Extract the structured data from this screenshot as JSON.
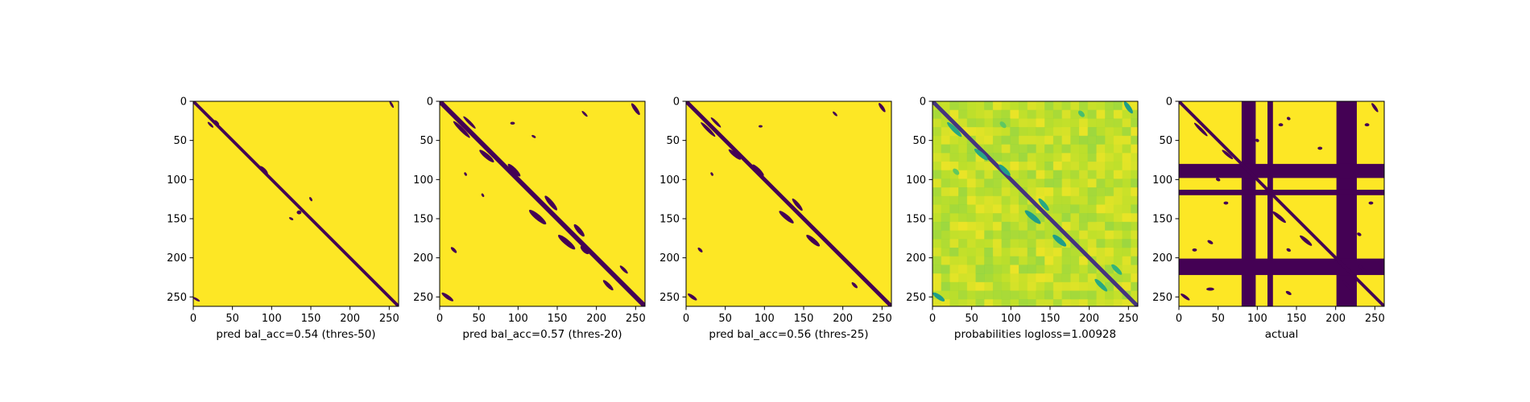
{
  "figure": {
    "background": "#ffffff"
  },
  "colors": {
    "low": "#440154",
    "high": "#fde725",
    "mid_green": "#35b779",
    "mid_teal": "#21918c"
  },
  "chart_data": [
    {
      "type": "heatmap",
      "title": "",
      "xlabel": "pred bal_acc=0.54 (thres-50)",
      "ylabel": "",
      "matrix_size": 262,
      "xlim": [
        0,
        262
      ],
      "ylim": [
        262,
        0
      ],
      "xticks": [
        0,
        50,
        100,
        150,
        200,
        250
      ],
      "yticks": [
        0,
        50,
        100,
        150,
        200,
        250
      ],
      "colormap": "viridis",
      "background_value": 1,
      "diagonal": {
        "value": 0,
        "halfwidth": 2
      },
      "blobs": [
        {
          "x": 22,
          "y": 30,
          "value": 0,
          "len": 10,
          "w": 1.6,
          "angle": -45
        },
        {
          "x": 30,
          "y": 27,
          "value": 0,
          "len": 8,
          "w": 1.5,
          "angle": -45
        },
        {
          "x": 90,
          "y": 88,
          "value": 0,
          "len": 14,
          "w": 2.5,
          "angle": -45
        },
        {
          "x": 135,
          "y": 142,
          "value": 0,
          "len": 6,
          "w": 2.5,
          "angle": 0
        },
        {
          "x": 150,
          "y": 125,
          "value": 0,
          "len": 6,
          "w": 1.5,
          "angle": -60
        },
        {
          "x": 125,
          "y": 150,
          "value": 0,
          "len": 6,
          "w": 1.5,
          "angle": -30
        },
        {
          "x": 4,
          "y": 253,
          "value": 0,
          "len": 10,
          "w": 1.5,
          "angle": -30
        },
        {
          "x": 253,
          "y": 4,
          "value": 0,
          "len": 10,
          "w": 1.5,
          "angle": -60
        }
      ],
      "bands": []
    },
    {
      "type": "heatmap",
      "title": "",
      "xlabel": "pred bal_acc=0.57 (thres-20)",
      "ylabel": "",
      "matrix_size": 262,
      "xlim": [
        0,
        262
      ],
      "ylim": [
        262,
        0
      ],
      "xticks": [
        0,
        50,
        100,
        150,
        200,
        250
      ],
      "yticks": [
        0,
        50,
        100,
        150,
        200,
        250
      ],
      "colormap": "viridis",
      "background_value": 1,
      "diagonal": {
        "value": 0,
        "halfwidth": 3
      },
      "blobs": [
        {
          "x": 28,
          "y": 36,
          "value": 0,
          "len": 30,
          "w": 2.5,
          "angle": -45
        },
        {
          "x": 38,
          "y": 27,
          "value": 0,
          "len": 22,
          "w": 2,
          "angle": -45
        },
        {
          "x": 60,
          "y": 70,
          "value": 0,
          "len": 24,
          "w": 3,
          "angle": -40
        },
        {
          "x": 95,
          "y": 88,
          "value": 0,
          "len": 22,
          "w": 3,
          "angle": -45
        },
        {
          "x": 125,
          "y": 148,
          "value": 0,
          "len": 28,
          "w": 3.5,
          "angle": -40
        },
        {
          "x": 142,
          "y": 130,
          "value": 0,
          "len": 24,
          "w": 3,
          "angle": -50
        },
        {
          "x": 162,
          "y": 180,
          "value": 0,
          "len": 28,
          "w": 3.5,
          "angle": -40
        },
        {
          "x": 178,
          "y": 165,
          "value": 0,
          "len": 20,
          "w": 3,
          "angle": -50
        },
        {
          "x": 185,
          "y": 190,
          "value": 0,
          "len": 14,
          "w": 3,
          "angle": -45
        },
        {
          "x": 93,
          "y": 28,
          "value": 0,
          "len": 6,
          "w": 1.8,
          "angle": 0
        },
        {
          "x": 120,
          "y": 45,
          "value": 0,
          "len": 6,
          "w": 1.5,
          "angle": -30
        },
        {
          "x": 185,
          "y": 16,
          "value": 0,
          "len": 10,
          "w": 1.5,
          "angle": -45
        },
        {
          "x": 33,
          "y": 93,
          "value": 0,
          "len": 5,
          "w": 1.5,
          "angle": -60
        },
        {
          "x": 55,
          "y": 120,
          "value": 0,
          "len": 5,
          "w": 1.5,
          "angle": -60
        },
        {
          "x": 18,
          "y": 190,
          "value": 0,
          "len": 10,
          "w": 2,
          "angle": -45
        },
        {
          "x": 10,
          "y": 250,
          "value": 0,
          "len": 18,
          "w": 2.5,
          "angle": -35
        },
        {
          "x": 250,
          "y": 10,
          "value": 0,
          "len": 18,
          "w": 2.5,
          "angle": -55
        },
        {
          "x": 215,
          "y": 235,
          "value": 0,
          "len": 18,
          "w": 2.5,
          "angle": -45
        },
        {
          "x": 235,
          "y": 215,
          "value": 0,
          "len": 14,
          "w": 2,
          "angle": -45
        }
      ],
      "bands": []
    },
    {
      "type": "heatmap",
      "title": "",
      "xlabel": "pred bal_acc=0.56 (thres-25)",
      "ylabel": "",
      "matrix_size": 262,
      "xlim": [
        0,
        262
      ],
      "ylim": [
        262,
        0
      ],
      "xticks": [
        0,
        50,
        100,
        150,
        200,
        250
      ],
      "yticks": [
        0,
        50,
        100,
        150,
        200,
        250
      ],
      "colormap": "viridis",
      "background_value": 1,
      "diagonal": {
        "value": 0,
        "halfwidth": 2.5
      },
      "blobs": [
        {
          "x": 28,
          "y": 36,
          "value": 0,
          "len": 26,
          "w": 2.2,
          "angle": -45
        },
        {
          "x": 38,
          "y": 27,
          "value": 0,
          "len": 18,
          "w": 1.8,
          "angle": -45
        },
        {
          "x": 62,
          "y": 68,
          "value": 0,
          "len": 20,
          "w": 2.5,
          "angle": -40
        },
        {
          "x": 92,
          "y": 88,
          "value": 0,
          "len": 20,
          "w": 2.5,
          "angle": -45
        },
        {
          "x": 128,
          "y": 148,
          "value": 0,
          "len": 24,
          "w": 3,
          "angle": -40
        },
        {
          "x": 142,
          "y": 132,
          "value": 0,
          "len": 20,
          "w": 2.5,
          "angle": -50
        },
        {
          "x": 162,
          "y": 178,
          "value": 0,
          "len": 22,
          "w": 3,
          "angle": -40
        },
        {
          "x": 95,
          "y": 32,
          "value": 0,
          "len": 5,
          "w": 1.5,
          "angle": 0
        },
        {
          "x": 190,
          "y": 16,
          "value": 0,
          "len": 8,
          "w": 1.5,
          "angle": -45
        },
        {
          "x": 33,
          "y": 93,
          "value": 0,
          "len": 5,
          "w": 1.5,
          "angle": -60
        },
        {
          "x": 18,
          "y": 190,
          "value": 0,
          "len": 8,
          "w": 1.8,
          "angle": -45
        },
        {
          "x": 8,
          "y": 250,
          "value": 0,
          "len": 14,
          "w": 2.2,
          "angle": -35
        },
        {
          "x": 250,
          "y": 8,
          "value": 0,
          "len": 14,
          "w": 2.2,
          "angle": -55
        },
        {
          "x": 215,
          "y": 235,
          "value": 0,
          "len": 10,
          "w": 2,
          "angle": -45
        }
      ],
      "bands": []
    },
    {
      "type": "heatmap",
      "title": "",
      "xlabel": "probabilities logloss=1.00928",
      "ylabel": "",
      "matrix_size": 262,
      "xlim": [
        0,
        262
      ],
      "ylim": [
        262,
        0
      ],
      "xticks": [
        0,
        50,
        100,
        150,
        200,
        250
      ],
      "yticks": [
        0,
        50,
        100,
        150,
        200,
        250
      ],
      "colormap": "viridis",
      "background_value": 0.93,
      "texture": "mottled",
      "diagonal": {
        "value": 0.15,
        "halfwidth": 2.5
      },
      "blobs": [
        {
          "x": 28,
          "y": 36,
          "value": 0.6,
          "len": 26,
          "w": 3,
          "angle": -45
        },
        {
          "x": 62,
          "y": 68,
          "value": 0.6,
          "len": 22,
          "w": 3,
          "angle": -40
        },
        {
          "x": 92,
          "y": 88,
          "value": 0.55,
          "len": 20,
          "w": 3,
          "angle": -45
        },
        {
          "x": 128,
          "y": 148,
          "value": 0.55,
          "len": 26,
          "w": 3.5,
          "angle": -40
        },
        {
          "x": 142,
          "y": 132,
          "value": 0.6,
          "len": 20,
          "w": 3,
          "angle": -50
        },
        {
          "x": 162,
          "y": 178,
          "value": 0.55,
          "len": 22,
          "w": 3.5,
          "angle": -40
        },
        {
          "x": 215,
          "y": 235,
          "value": 0.6,
          "len": 22,
          "w": 3,
          "angle": -45
        },
        {
          "x": 235,
          "y": 215,
          "value": 0.65,
          "len": 18,
          "w": 3,
          "angle": -45
        },
        {
          "x": 8,
          "y": 250,
          "value": 0.55,
          "len": 18,
          "w": 3,
          "angle": -35
        },
        {
          "x": 250,
          "y": 8,
          "value": 0.55,
          "len": 18,
          "w": 3,
          "angle": -55
        },
        {
          "x": 30,
          "y": 90,
          "value": 0.75,
          "len": 10,
          "w": 3,
          "angle": -45
        },
        {
          "x": 90,
          "y": 30,
          "value": 0.75,
          "len": 10,
          "w": 3,
          "angle": -45
        },
        {
          "x": 190,
          "y": 16,
          "value": 0.7,
          "len": 10,
          "w": 3,
          "angle": -45
        }
      ],
      "bands": []
    },
    {
      "type": "heatmap",
      "title": "",
      "xlabel": "actual",
      "ylabel": "",
      "matrix_size": 262,
      "xlim": [
        0,
        262
      ],
      "ylim": [
        262,
        0
      ],
      "xticks": [
        0,
        50,
        100,
        150,
        200,
        250
      ],
      "yticks": [
        0,
        50,
        100,
        150,
        200,
        250
      ],
      "colormap": "viridis",
      "background_value": 1,
      "diagonal": {
        "value": 0,
        "halfwidth": 2
      },
      "blobs": [
        {
          "x": 28,
          "y": 36,
          "value": 0,
          "len": 24,
          "w": 2,
          "angle": -45
        },
        {
          "x": 62,
          "y": 68,
          "value": 0,
          "len": 18,
          "w": 2,
          "angle": -40
        },
        {
          "x": 128,
          "y": 148,
          "value": 0,
          "len": 22,
          "w": 2.5,
          "angle": -40
        },
        {
          "x": 162,
          "y": 178,
          "value": 0,
          "len": 20,
          "w": 2.5,
          "angle": -40
        },
        {
          "x": 235,
          "y": 215,
          "value": 0,
          "len": 18,
          "w": 2,
          "angle": -45
        },
        {
          "x": 215,
          "y": 235,
          "value": 0,
          "len": 18,
          "w": 2,
          "angle": -45
        },
        {
          "x": 130,
          "y": 30,
          "value": 0,
          "len": 6,
          "w": 2,
          "angle": 0
        },
        {
          "x": 140,
          "y": 22,
          "value": 0,
          "len": 5,
          "w": 2,
          "angle": -30
        },
        {
          "x": 240,
          "y": 30,
          "value": 0,
          "len": 6,
          "w": 2,
          "angle": 0
        },
        {
          "x": 50,
          "y": 100,
          "value": 0,
          "len": 6,
          "w": 2,
          "angle": -30
        },
        {
          "x": 60,
          "y": 130,
          "value": 0,
          "len": 6,
          "w": 2,
          "angle": 0
        },
        {
          "x": 40,
          "y": 180,
          "value": 0,
          "len": 8,
          "w": 2,
          "angle": -30
        },
        {
          "x": 20,
          "y": 190,
          "value": 0,
          "len": 6,
          "w": 2,
          "angle": 0
        },
        {
          "x": 140,
          "y": 190,
          "value": 0,
          "len": 6,
          "w": 2,
          "angle": -30
        },
        {
          "x": 245,
          "y": 130,
          "value": 0,
          "len": 6,
          "w": 2,
          "angle": 0
        },
        {
          "x": 230,
          "y": 170,
          "value": 0,
          "len": 6,
          "w": 2,
          "angle": -30
        },
        {
          "x": 40,
          "y": 240,
          "value": 0,
          "len": 10,
          "w": 2,
          "angle": 0
        },
        {
          "x": 140,
          "y": 245,
          "value": 0,
          "len": 8,
          "w": 2,
          "angle": -30
        },
        {
          "x": 8,
          "y": 250,
          "value": 0,
          "len": 14,
          "w": 2,
          "angle": -35
        },
        {
          "x": 250,
          "y": 8,
          "value": 0,
          "len": 14,
          "w": 2,
          "angle": -55
        },
        {
          "x": 180,
          "y": 60,
          "value": 0,
          "len": 6,
          "w": 2,
          "angle": 0
        },
        {
          "x": 100,
          "y": 50,
          "value": 0,
          "len": 5,
          "w": 2,
          "angle": -30
        }
      ],
      "bands": [
        {
          "axis": "x",
          "start": 80,
          "end": 98,
          "value": 0
        },
        {
          "axis": "x",
          "start": 113,
          "end": 120,
          "value": 0
        },
        {
          "axis": "x",
          "start": 201,
          "end": 227,
          "value": 0
        },
        {
          "axis": "y",
          "start": 80,
          "end": 98,
          "value": 0
        },
        {
          "axis": "y",
          "start": 113,
          "end": 120,
          "value": 0
        },
        {
          "axis": "y",
          "start": 201,
          "end": 222,
          "value": 0
        }
      ]
    }
  ]
}
